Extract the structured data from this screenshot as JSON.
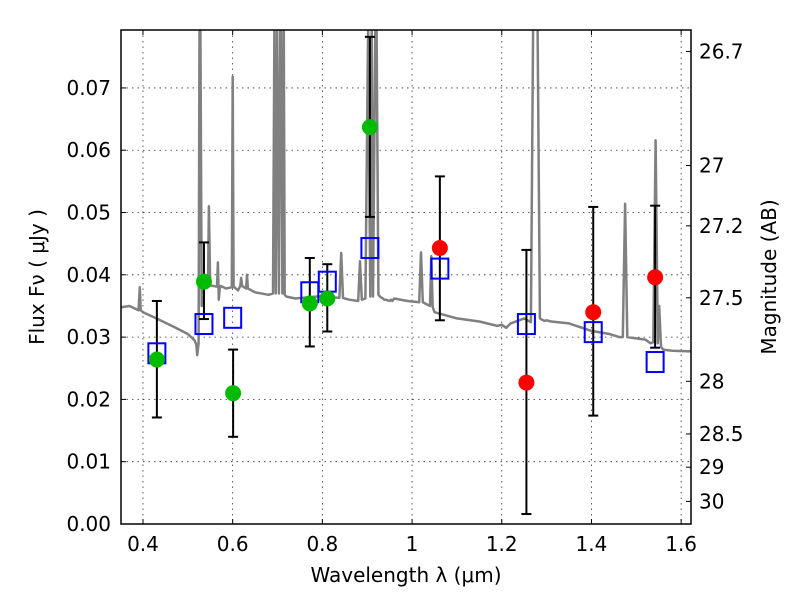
{
  "chart_data": {
    "type": "scatter",
    "title": "",
    "xlabel": "Wavelength  λ (μm)",
    "ylabel": "Flux  Fν  ( μJy )",
    "y2label": "Magnitude (AB)",
    "xlim": [
      0.351,
      1.622
    ],
    "ylim": [
      0.0,
      0.0793
    ],
    "grid": true,
    "xticks": [
      0.4,
      0.6,
      0.8,
      1.0,
      1.2,
      1.4,
      1.6
    ],
    "xtick_labels": [
      "0.4",
      "0.6",
      "0.8",
      "1",
      "1.2",
      "1.4",
      "1.6"
    ],
    "yticks": [
      0.0,
      0.01,
      0.02,
      0.03,
      0.04,
      0.05,
      0.06,
      0.07
    ],
    "ytick_labels": [
      "0.00",
      "0.01",
      "0.02",
      "0.03",
      "0.04",
      "0.05",
      "0.06",
      "0.07"
    ],
    "y2_ticks_mag": [
      26.7,
      27,
      27.2,
      27.5,
      28,
      28.5,
      29,
      30
    ],
    "y2_tick_labels": [
      "26.7",
      "27",
      "27.2",
      "27.5",
      "28",
      "28.5",
      "29",
      "30"
    ],
    "series": [
      {
        "name": "model-spectrum",
        "kind": "line",
        "color": "#808080",
        "x": [
          0.351,
          0.37,
          0.39,
          0.393,
          0.395,
          0.4,
          0.43,
          0.47,
          0.5,
          0.515,
          0.519,
          0.521,
          0.524,
          0.526,
          0.528,
          0.531,
          0.535,
          0.54,
          0.545,
          0.547,
          0.55,
          0.565,
          0.567,
          0.569,
          0.571,
          0.574,
          0.585,
          0.598,
          0.6,
          0.602,
          0.604,
          0.612,
          0.617,
          0.619,
          0.621,
          0.626,
          0.63,
          0.632,
          0.634,
          0.65,
          0.68,
          0.69,
          0.693,
          0.696,
          0.699,
          0.703,
          0.706,
          0.708,
          0.711,
          0.714,
          0.716,
          0.72,
          0.74,
          0.77,
          0.8,
          0.82,
          0.838,
          0.842,
          0.846,
          0.86,
          0.88,
          0.884,
          0.888,
          0.896,
          0.902,
          0.907,
          0.91,
          0.913,
          0.918,
          0.921,
          0.925,
          0.93,
          0.935,
          0.938,
          0.942,
          0.946,
          0.95,
          0.953,
          0.956,
          0.96,
          0.99,
          1.016,
          1.02,
          1.024,
          1.04,
          1.043,
          1.046,
          1.05,
          1.07,
          1.1,
          1.15,
          1.19,
          1.2,
          1.21,
          1.22,
          1.235,
          1.25,
          1.265,
          1.27,
          1.28,
          1.285,
          1.29,
          1.295,
          1.3,
          1.31,
          1.35,
          1.4,
          1.44,
          1.462,
          1.47,
          1.475,
          1.48,
          1.5,
          1.52,
          1.532,
          1.538,
          1.543,
          1.548,
          1.551,
          1.555,
          1.56,
          1.58,
          1.622
        ],
        "y": [
          0.0348,
          0.035,
          0.0343,
          0.038,
          0.0343,
          0.034,
          0.033,
          0.0316,
          0.0305,
          0.0295,
          0.0288,
          0.0271,
          0.029,
          0.0795,
          0.0795,
          0.035,
          0.038,
          0.0387,
          0.0385,
          0.051,
          0.0383,
          0.0381,
          0.042,
          0.036,
          0.0378,
          0.0382,
          0.0378,
          0.038,
          0.0718,
          0.038,
          0.038,
          0.0375,
          0.0382,
          0.0395,
          0.0382,
          0.038,
          0.0378,
          0.04,
          0.0378,
          0.0372,
          0.0368,
          0.037,
          0.0795,
          0.037,
          0.0795,
          0.037,
          0.0795,
          0.0795,
          0.037,
          0.0795,
          0.0368,
          0.0365,
          0.0362,
          0.0364,
          0.0366,
          0.0364,
          0.0363,
          0.0435,
          0.0363,
          0.036,
          0.0358,
          0.0422,
          0.036,
          0.0362,
          0.0795,
          0.0365,
          0.0795,
          0.0365,
          0.0795,
          0.0795,
          0.0368,
          0.0364,
          0.0362,
          0.036,
          0.036,
          0.0359,
          0.0358,
          0.036,
          0.0358,
          0.0362,
          0.0358,
          0.0356,
          0.0436,
          0.0356,
          0.035,
          0.043,
          0.0348,
          0.034,
          0.0336,
          0.033,
          0.0325,
          0.0318,
          0.032,
          0.0315,
          0.0322,
          0.0326,
          0.033,
          0.0324,
          0.0795,
          0.0795,
          0.033,
          0.0328,
          0.0326,
          0.0327,
          0.0325,
          0.0322,
          0.031,
          0.0305,
          0.03,
          0.03,
          0.0514,
          0.03,
          0.0298,
          0.0296,
          0.029,
          0.0292,
          0.0616,
          0.029,
          0.035,
          0.0285,
          0.028,
          0.0278,
          0.0277
        ]
      },
      {
        "name": "green-photometry",
        "kind": "errorbar",
        "color": "#00bb00",
        "x": [
          0.431,
          0.536,
          0.601,
          0.772,
          0.811,
          0.906
        ],
        "y": [
          0.0264,
          0.0389,
          0.021,
          0.0354,
          0.0362,
          0.0637
        ],
        "yerr_low": [
          0.0171,
          0.0329,
          0.014,
          0.0285,
          0.0309,
          0.0493
        ],
        "yerr_high": [
          0.0358,
          0.0452,
          0.028,
          0.0427,
          0.0417,
          0.0782
        ]
      },
      {
        "name": "red-photometry",
        "kind": "errorbar",
        "color": "#ff0000",
        "x": [
          1.062,
          1.255,
          1.404,
          1.542
        ],
        "y": [
          0.0443,
          0.0227,
          0.034,
          0.0396
        ],
        "yerr_low": [
          0.0327,
          0.0016,
          0.0174,
          0.0283
        ],
        "yerr_high": [
          0.0558,
          0.044,
          0.0509,
          0.0511
        ]
      },
      {
        "name": "model-band-flux",
        "kind": "scatter",
        "marker": "open-square",
        "color": "#0000ff",
        "x": [
          0.431,
          0.536,
          0.6,
          0.772,
          0.811,
          0.906,
          1.062,
          1.255,
          1.404,
          1.542
        ],
        "y": [
          0.0274,
          0.0321,
          0.0331,
          0.0372,
          0.0389,
          0.0443,
          0.041,
          0.0321,
          0.0308,
          0.026
        ]
      }
    ]
  }
}
